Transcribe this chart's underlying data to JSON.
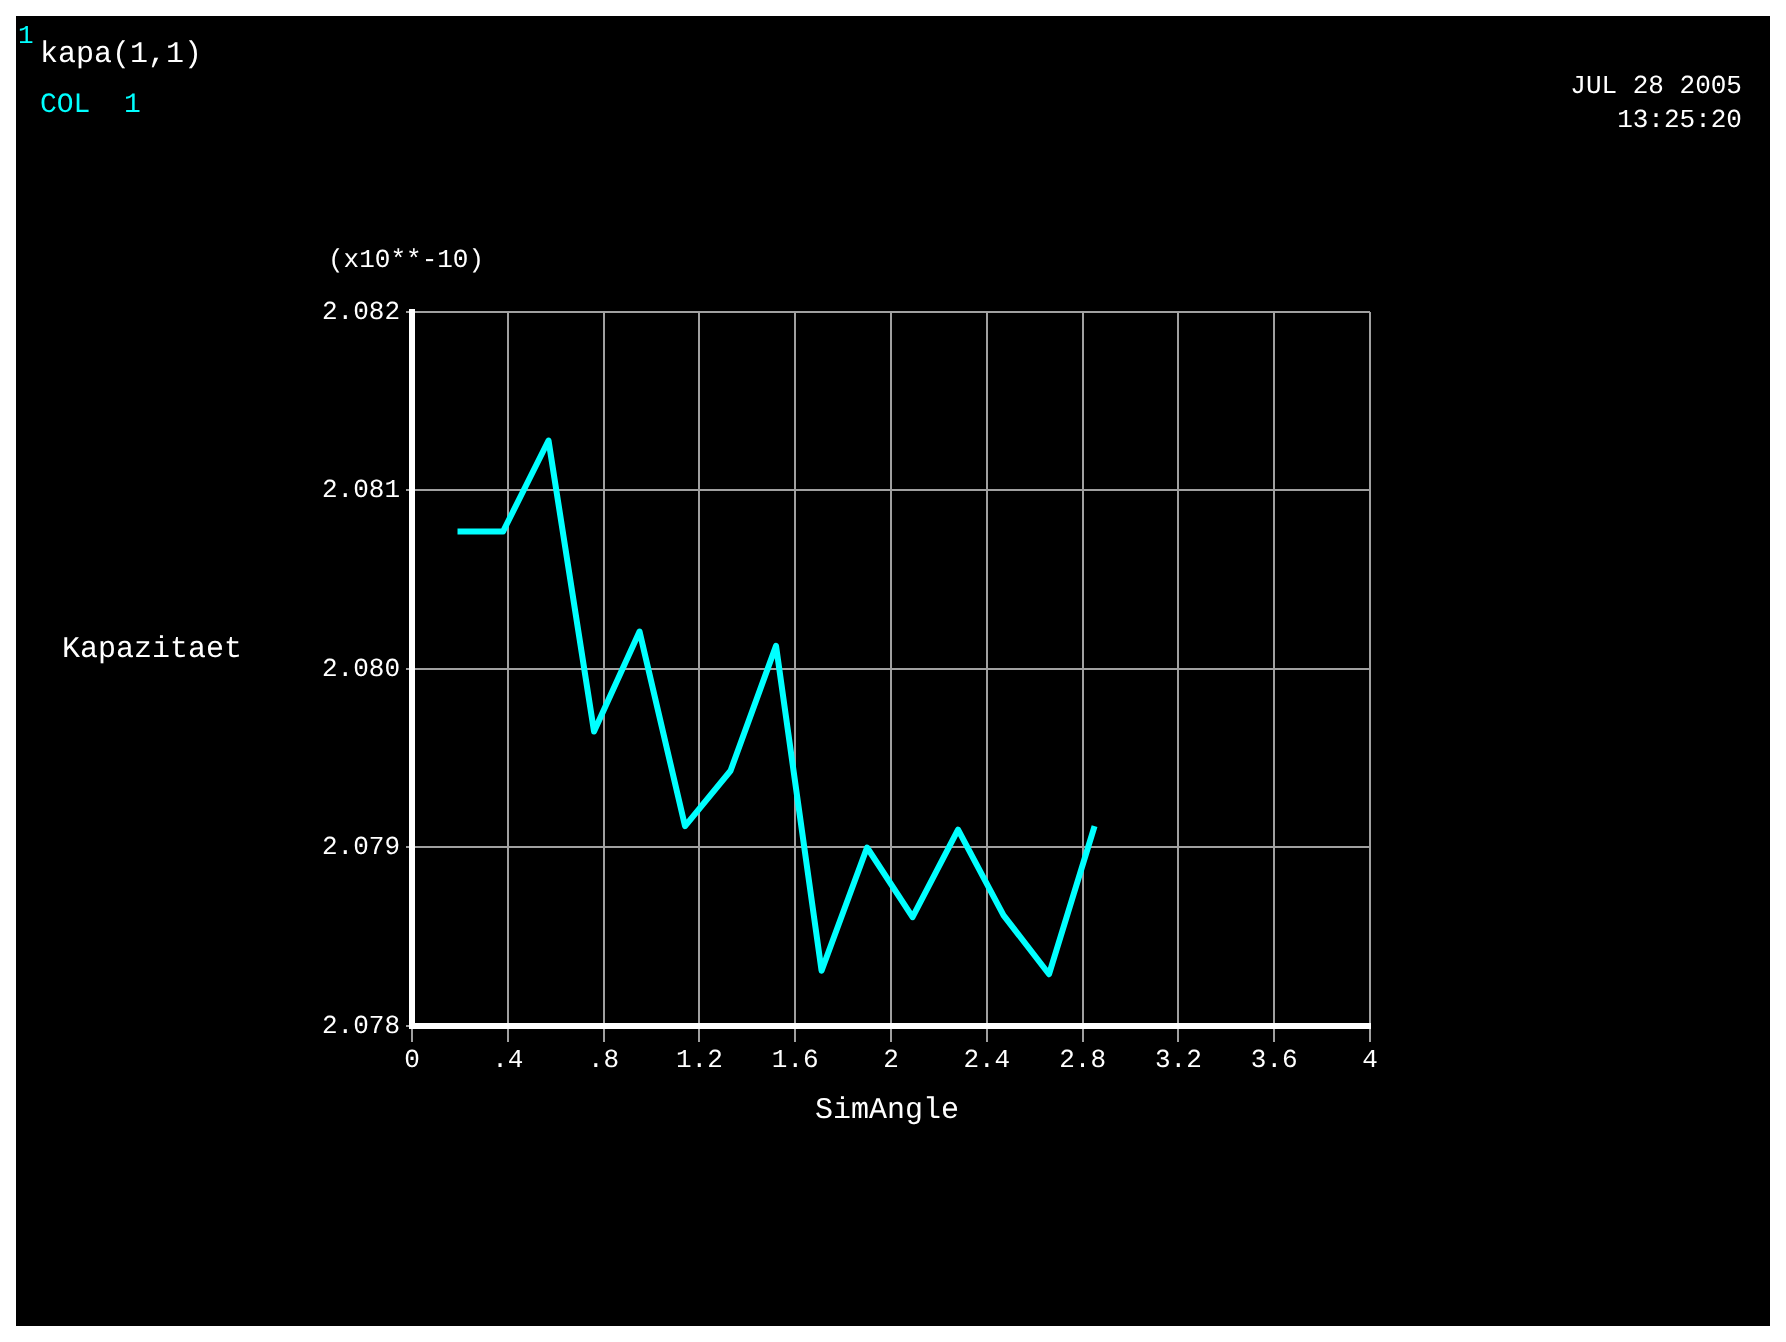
{
  "chart_data": {
    "type": "line",
    "title": "kapa(1,1)",
    "xlabel": "SimAngle",
    "ylabel": "Kapazitaet",
    "annotations": [
      "1",
      "(x10**-10)",
      "JUL 28 2005",
      "13:25:20"
    ],
    "x": [
      0.19,
      0.38,
      0.57,
      0.76,
      0.95,
      1.14,
      1.33,
      1.52,
      1.71,
      1.9,
      2.09,
      2.28,
      2.47,
      2.66,
      2.85
    ],
    "series": [
      {
        "name": "COL  1",
        "color": "#00ffff",
        "values": [
          2.08077,
          2.08077,
          2.08128,
          2.07965,
          2.08021,
          2.07912,
          2.07943,
          2.08013,
          2.07831,
          2.079,
          2.07861,
          2.0791,
          2.07862,
          2.07829,
          2.07912
        ]
      }
    ],
    "xlim": [
      0,
      4
    ],
    "xticks": [
      0,
      {
        "value": 0.4,
        "label": ".4"
      },
      {
        "value": 0.8,
        "label": ".8"
      },
      1.2,
      1.6,
      2,
      2.4,
      2.8,
      3.2,
      3.6,
      4
    ],
    "ylim": [
      2.078,
      2.082
    ],
    "yticks": [
      2.078,
      2.079,
      {
        "value": 2.08,
        "label": "2.080"
      },
      2.081,
      2.082
    ],
    "grid": true,
    "legend": "top left",
    "marker": "none",
    "line_style": "solid"
  }
}
